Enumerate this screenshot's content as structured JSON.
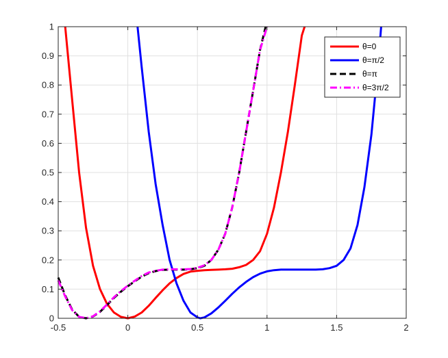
{
  "chart_data": {
    "type": "line",
    "title": "",
    "xlabel": "",
    "ylabel": "",
    "xlim": [
      -0.5,
      2
    ],
    "ylim": [
      0,
      1
    ],
    "xticks": [
      "-0.5",
      "0",
      "0.5",
      "1",
      "1.5",
      "2"
    ],
    "yticks": [
      "0",
      "0.1",
      "0.2",
      "0.3",
      "0.4",
      "0.5",
      "0.6",
      "0.7",
      "0.8",
      "0.9",
      "1"
    ],
    "grid": true,
    "legend_position": "top-right",
    "series": [
      {
        "name": "θ=0",
        "color": "#ff0000",
        "style": "solid",
        "x": [
          -0.45,
          -0.4,
          -0.35,
          -0.3,
          -0.25,
          -0.2,
          -0.15,
          -0.1,
          -0.05,
          0,
          0.05,
          0.1,
          0.15,
          0.2,
          0.25,
          0.3,
          0.35,
          0.4,
          0.45,
          0.5,
          0.55,
          0.6,
          0.65,
          0.7,
          0.75,
          0.8,
          0.85,
          0.9,
          0.95,
          1.0,
          1.05,
          1.1,
          1.15,
          1.2,
          1.25,
          1.27
        ],
        "y": [
          1.0,
          0.75,
          0.5,
          0.31,
          0.18,
          0.1,
          0.05,
          0.02,
          0.005,
          0.0,
          0.006,
          0.02,
          0.043,
          0.07,
          0.096,
          0.12,
          0.138,
          0.152,
          0.16,
          0.163,
          0.165,
          0.166,
          0.167,
          0.168,
          0.17,
          0.175,
          0.183,
          0.2,
          0.23,
          0.29,
          0.38,
          0.5,
          0.64,
          0.8,
          0.97,
          1.0
        ]
      },
      {
        "name": "θ=π/2",
        "color": "#0000ff",
        "style": "solid",
        "x": [
          0.07,
          0.1,
          0.15,
          0.2,
          0.25,
          0.3,
          0.35,
          0.4,
          0.45,
          0.5,
          0.52,
          0.55,
          0.6,
          0.65,
          0.7,
          0.75,
          0.8,
          0.85,
          0.9,
          0.95,
          1.0,
          1.05,
          1.1,
          1.15,
          1.2,
          1.25,
          1.3,
          1.35,
          1.4,
          1.45,
          1.5,
          1.55,
          1.6,
          1.65,
          1.7,
          1.75,
          1.8,
          1.82
        ],
        "y": [
          1.0,
          0.86,
          0.64,
          0.46,
          0.32,
          0.2,
          0.12,
          0.06,
          0.02,
          0.003,
          0.0,
          0.003,
          0.017,
          0.037,
          0.06,
          0.084,
          0.106,
          0.125,
          0.141,
          0.153,
          0.161,
          0.165,
          0.167,
          0.167,
          0.167,
          0.167,
          0.167,
          0.167,
          0.168,
          0.172,
          0.18,
          0.2,
          0.24,
          0.32,
          0.45,
          0.63,
          0.88,
          1.0
        ]
      },
      {
        "name": "θ=π",
        "color": "#000000",
        "style": "dashed",
        "x": [
          -0.5,
          -0.45,
          -0.4,
          -0.35,
          -0.3,
          -0.25,
          -0.2,
          -0.15,
          -0.1,
          -0.05,
          0,
          0.05,
          0.1,
          0.15,
          0.2,
          0.25,
          0.3,
          0.35,
          0.4,
          0.45,
          0.5,
          0.55,
          0.6,
          0.65,
          0.7,
          0.75,
          0.8,
          0.85,
          0.9,
          0.95,
          0.99
        ],
        "y": [
          0.14,
          0.078,
          0.03,
          0.005,
          0.0,
          0.006,
          0.022,
          0.045,
          0.07,
          0.091,
          0.11,
          0.127,
          0.143,
          0.155,
          0.162,
          0.166,
          0.167,
          0.167,
          0.167,
          0.168,
          0.172,
          0.18,
          0.2,
          0.235,
          0.29,
          0.38,
          0.5,
          0.64,
          0.78,
          0.92,
          1.0
        ]
      },
      {
        "name": "θ=3π/2",
        "color": "#ff00ff",
        "style": "dashdot",
        "x": [
          -0.5,
          -0.45,
          -0.4,
          -0.35,
          -0.3,
          -0.25,
          -0.2,
          -0.15,
          -0.1,
          -0.05,
          0,
          0.05,
          0.1,
          0.15,
          0.2,
          0.25,
          0.3,
          0.35,
          0.4,
          0.45,
          0.5,
          0.55,
          0.6,
          0.65,
          0.7,
          0.75,
          0.8,
          0.85,
          0.9,
          0.95,
          1.0
        ],
        "y": [
          0.13,
          0.075,
          0.028,
          0.005,
          0.0,
          0.007,
          0.024,
          0.047,
          0.072,
          0.093,
          0.112,
          0.129,
          0.145,
          0.157,
          0.163,
          0.167,
          0.168,
          0.168,
          0.168,
          0.169,
          0.173,
          0.182,
          0.2,
          0.235,
          0.29,
          0.38,
          0.5,
          0.64,
          0.78,
          0.92,
          1.0
        ]
      }
    ]
  }
}
